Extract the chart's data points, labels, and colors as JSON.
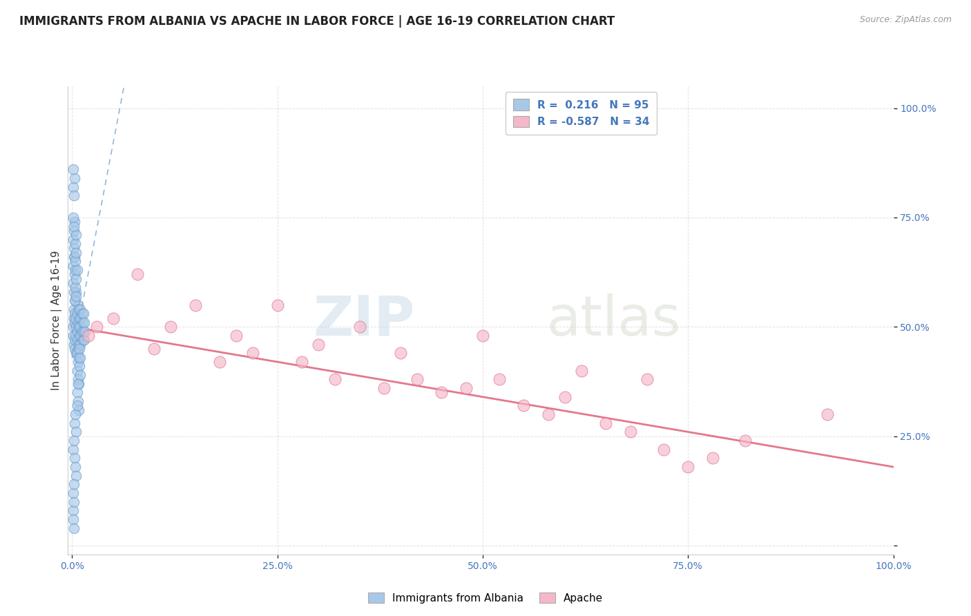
{
  "title": "IMMIGRANTS FROM ALBANIA VS APACHE IN LABOR FORCE | AGE 16-19 CORRELATION CHART",
  "source_text": "Source: ZipAtlas.com",
  "ylabel": "In Labor Force | Age 16-19",
  "watermark_zip": "ZIP",
  "watermark_atlas": "atlas",
  "xlim": [
    -0.005,
    1.0
  ],
  "ylim": [
    -0.02,
    1.05
  ],
  "xticks": [
    0.0,
    0.25,
    0.5,
    0.75,
    1.0
  ],
  "xtick_labels": [
    "0.0%",
    "25.0%",
    "50.0%",
    "75.0%",
    "100.0%"
  ],
  "yticks": [
    0.0,
    0.25,
    0.5,
    0.75,
    1.0
  ],
  "ytick_labels_right": [
    "",
    "25.0%",
    "50.0%",
    "75.0%",
    "100.0%"
  ],
  "albania_R": 0.216,
  "albania_N": 95,
  "apache_R": -0.587,
  "apache_N": 34,
  "albania_color": "#a8c8e8",
  "albania_edge_color": "#6699cc",
  "apache_color": "#f5b8c8",
  "apache_edge_color": "#e07090",
  "albania_trend_color": "#6699cc",
  "apache_trend_color": "#e06880",
  "title_fontsize": 12,
  "axis_label_fontsize": 11,
  "tick_fontsize": 10,
  "tick_color": "#4477bb",
  "legend_fontsize": 11,
  "albania_x": [
    0.001,
    0.001,
    0.002,
    0.002,
    0.002,
    0.003,
    0.003,
    0.003,
    0.003,
    0.004,
    0.004,
    0.004,
    0.005,
    0.005,
    0.005,
    0.006,
    0.006,
    0.006,
    0.007,
    0.007,
    0.007,
    0.008,
    0.008,
    0.008,
    0.009,
    0.009,
    0.01,
    0.01,
    0.01,
    0.011,
    0.011,
    0.012,
    0.012,
    0.013,
    0.013,
    0.014,
    0.014,
    0.015,
    0.015,
    0.016,
    0.001,
    0.001,
    0.002,
    0.002,
    0.003,
    0.003,
    0.004,
    0.004,
    0.005,
    0.005,
    0.006,
    0.006,
    0.007,
    0.007,
    0.008,
    0.008,
    0.009,
    0.009,
    0.01,
    0.01,
    0.001,
    0.002,
    0.002,
    0.003,
    0.003,
    0.004,
    0.004,
    0.005,
    0.005,
    0.006,
    0.006,
    0.007,
    0.007,
    0.008,
    0.001,
    0.002,
    0.003,
    0.004,
    0.005,
    0.006,
    0.001,
    0.002,
    0.003,
    0.004,
    0.005,
    0.001,
    0.002,
    0.003,
    0.001,
    0.002,
    0.001,
    0.002,
    0.001,
    0.002,
    0.001
  ],
  "albania_y": [
    0.5,
    0.48,
    0.52,
    0.46,
    0.54,
    0.51,
    0.47,
    0.53,
    0.45,
    0.52,
    0.48,
    0.56,
    0.5,
    0.44,
    0.58,
    0.49,
    0.53,
    0.47,
    0.51,
    0.45,
    0.55,
    0.5,
    0.46,
    0.54,
    0.48,
    0.52,
    0.5,
    0.46,
    0.54,
    0.48,
    0.52,
    0.49,
    0.53,
    0.47,
    0.51,
    0.49,
    0.53,
    0.47,
    0.51,
    0.49,
    0.6,
    0.64,
    0.58,
    0.66,
    0.62,
    0.56,
    0.63,
    0.59,
    0.61,
    0.57,
    0.4,
    0.44,
    0.42,
    0.38,
    0.43,
    0.37,
    0.41,
    0.45,
    0.39,
    0.43,
    0.7,
    0.68,
    0.72,
    0.66,
    0.74,
    0.65,
    0.69,
    0.67,
    0.71,
    0.63,
    0.35,
    0.33,
    0.37,
    0.31,
    0.75,
    0.73,
    0.28,
    0.3,
    0.26,
    0.32,
    0.22,
    0.24,
    0.2,
    0.18,
    0.16,
    0.82,
    0.8,
    0.84,
    0.12,
    0.14,
    0.08,
    0.1,
    0.06,
    0.04,
    0.86
  ],
  "apache_x": [
    0.02,
    0.03,
    0.05,
    0.08,
    0.1,
    0.12,
    0.15,
    0.18,
    0.2,
    0.22,
    0.25,
    0.28,
    0.3,
    0.32,
    0.35,
    0.38,
    0.4,
    0.42,
    0.45,
    0.48,
    0.5,
    0.52,
    0.55,
    0.58,
    0.6,
    0.62,
    0.65,
    0.68,
    0.7,
    0.72,
    0.75,
    0.78,
    0.82,
    0.92
  ],
  "apache_y": [
    0.48,
    0.5,
    0.52,
    0.62,
    0.45,
    0.5,
    0.55,
    0.42,
    0.48,
    0.44,
    0.55,
    0.42,
    0.46,
    0.38,
    0.5,
    0.36,
    0.44,
    0.38,
    0.35,
    0.36,
    0.48,
    0.38,
    0.32,
    0.3,
    0.34,
    0.4,
    0.28,
    0.26,
    0.38,
    0.22,
    0.18,
    0.2,
    0.24,
    0.3
  ],
  "apache_trend_start_x": 0.0,
  "apache_trend_start_y": 0.5,
  "apache_trend_end_x": 1.0,
  "apache_trend_end_y": 0.18
}
